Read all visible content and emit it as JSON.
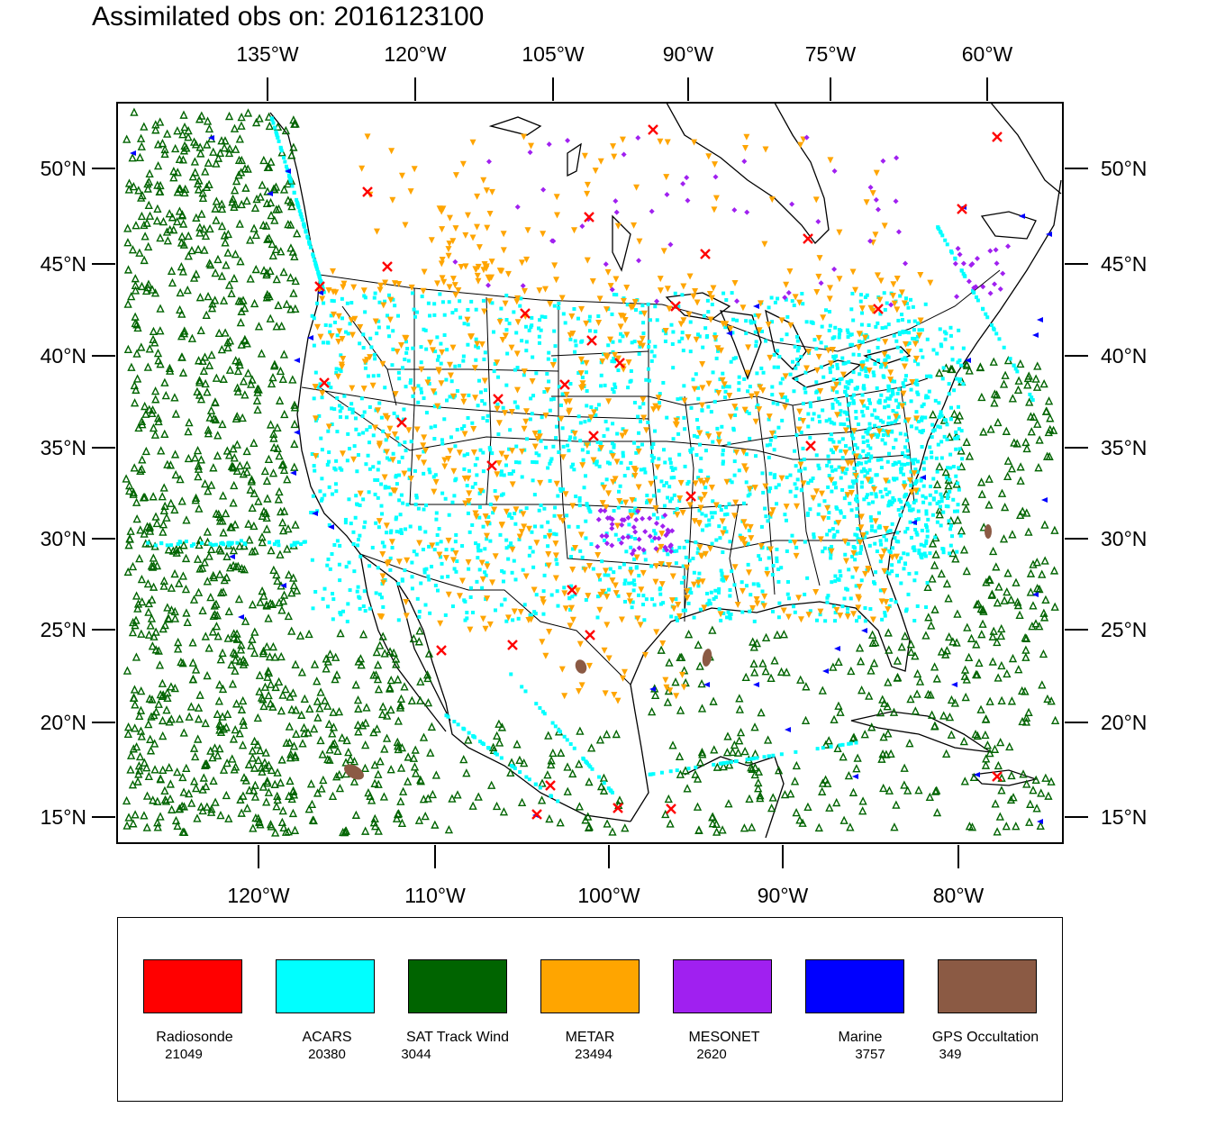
{
  "title": "Assimilated obs on: 2016123100",
  "map": {
    "region": "North America / CONUS",
    "top_axis_labels": [
      "135°W",
      "120°W",
      "105°W",
      "90°W",
      "75°W",
      "60°W"
    ],
    "bottom_axis_labels": [
      "120°W",
      "110°W",
      "100°W",
      "90°W",
      "80°W"
    ],
    "lat_labels": [
      "50°N",
      "45°N",
      "40°N",
      "35°N",
      "30°N",
      "25°N",
      "20°N",
      "15°N"
    ]
  },
  "legend": [
    {
      "name": "Radiosonde",
      "count": "21049",
      "color": "#ff0000",
      "marker": "x"
    },
    {
      "name": "ACARS",
      "count": "20380",
      "color": "#00ffff",
      "marker": "square-dot"
    },
    {
      "name": "SAT Track Wind",
      "count": "3044",
      "color": "#006400",
      "marker": "triangle-outline"
    },
    {
      "name": "METAR",
      "count": "23494",
      "color": "#ffa500",
      "marker": "inverted-triangle"
    },
    {
      "name": "MESONET",
      "count": "2620",
      "color": "#a020f0",
      "marker": "diamond"
    },
    {
      "name": "Marine",
      "count": "3757",
      "color": "#0000ff",
      "marker": "left-triangle"
    },
    {
      "name": "GPS Occultation",
      "count": "349",
      "color": "#8b5a44",
      "marker": "blob"
    }
  ]
}
